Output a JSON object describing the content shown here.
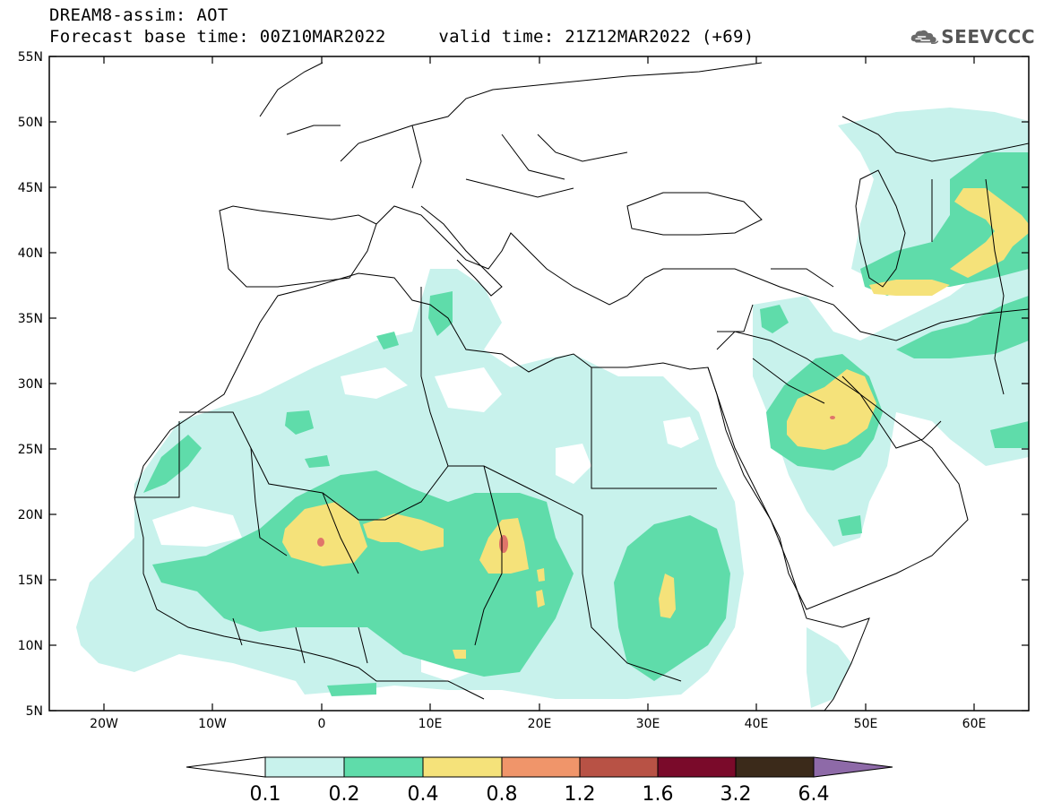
{
  "header": {
    "line1": "DREAM8-assim: AOT",
    "line2": "Forecast base time: 00Z10MAR2022     valid time: 21Z12MAR2022 (+69)"
  },
  "logo": {
    "text": "SEEVCCC",
    "icon": "cloud-icon"
  },
  "map": {
    "lon_range": [
      -25,
      65
    ],
    "lat_range": [
      5,
      55
    ],
    "lat_ticks": [
      "55N",
      "50N",
      "45N",
      "40N",
      "35N",
      "30N",
      "25N",
      "20N",
      "15N",
      "10N",
      "5N"
    ],
    "lon_ticks": [
      "20W",
      "10W",
      "0",
      "10E",
      "20E",
      "30E",
      "40E",
      "50E",
      "60E"
    ]
  },
  "colorbar": {
    "labels": [
      "0.1",
      "0.2",
      "0.4",
      "0.8",
      "1.2",
      "1.6",
      "3.2",
      "6.4"
    ],
    "colors": [
      "#ffffff",
      "#c8f2ec",
      "#5fdcaa",
      "#f5e27a",
      "#f0956a",
      "#b85245",
      "#7a0a2a",
      "#3b2a1a",
      "#8e6aa8"
    ]
  },
  "colors": {
    "level_0_1": "#c8f2ec",
    "level_0_2": "#5fdcaa",
    "level_0_4": "#f5e27a",
    "level_0_8": "#f0956a",
    "land_line": "#000000"
  }
}
